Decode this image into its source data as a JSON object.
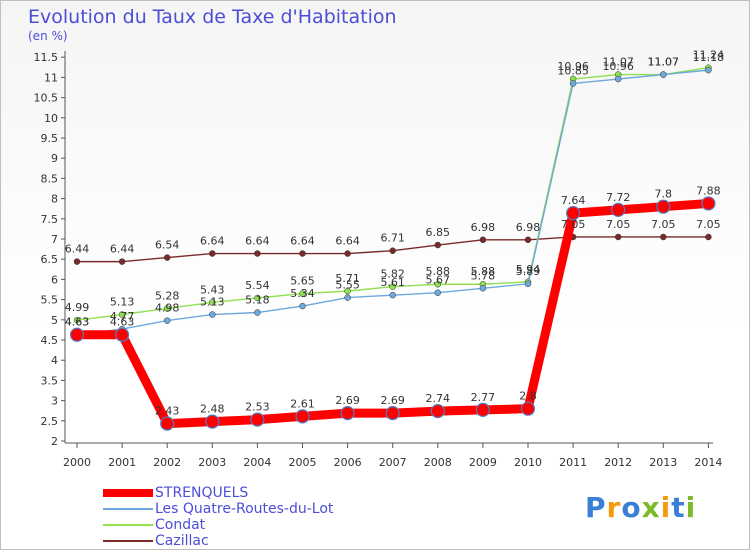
{
  "title": "Evolution du Taux de Taxe d'Habitation",
  "unit_label": "(en %)",
  "logo": {
    "letters": [
      {
        "ch": "P",
        "color": "#3a7fd6"
      },
      {
        "ch": "r",
        "color": "#f39c12"
      },
      {
        "ch": "o",
        "color": "#3a7fd6"
      },
      {
        "ch": "x",
        "color": "#7dbb2c"
      },
      {
        "ch": "i",
        "color": "#f39c12"
      },
      {
        "ch": "t",
        "color": "#3a7fd6"
      },
      {
        "ch": "i",
        "color": "#7dbb2c"
      }
    ]
  },
  "chart_data": {
    "type": "line",
    "x": [
      "2000",
      "2001",
      "2002",
      "2003",
      "2004",
      "2005",
      "2006",
      "2007",
      "2008",
      "2009",
      "2010",
      "2011",
      "2012",
      "2013",
      "2014"
    ],
    "yticks": [
      "2",
      "2.5",
      "3",
      "3.5",
      "4",
      "4.5",
      "5",
      "5.5",
      "6",
      "6.5",
      "7",
      "7.5",
      "8",
      "8.5",
      "9",
      "9.5",
      "10",
      "10.5",
      "11",
      "11.5"
    ],
    "ylim": [
      2,
      11.7
    ],
    "grid": false,
    "legend_position": "bottom-left",
    "series": [
      {
        "name": "STRENQUELS",
        "color": "#ff0000",
        "thick": true,
        "values": [
          4.63,
          4.63,
          2.43,
          2.48,
          2.53,
          2.61,
          2.69,
          2.69,
          2.74,
          2.77,
          2.8,
          7.64,
          7.72,
          7.8,
          7.88
        ],
        "labels": [
          "4.63",
          "4.63",
          "2.43",
          "2.48",
          "2.53",
          "2.61",
          "2.69",
          "2.69",
          "2.74",
          "2.77",
          "2.8",
          "7.64",
          "7.72",
          "7.8",
          "7.88"
        ]
      },
      {
        "name": "Les Quatre-Routes-du-Lot",
        "color": "#6fa8dc",
        "values": [
          4.63,
          4.77,
          4.98,
          5.13,
          5.18,
          5.34,
          5.55,
          5.61,
          5.67,
          5.78,
          5.89,
          10.85,
          10.96,
          11.07,
          11.18
        ],
        "labels": [
          "4.63",
          "4.77",
          "4.98",
          "5.13",
          "5.18",
          "5.34",
          "5.55",
          "5.61",
          "5.67",
          "5.78",
          "5.89",
          "10.85",
          "10.96",
          "11.07",
          "11.18"
        ]
      },
      {
        "name": "Condat",
        "color": "#90e050",
        "values": [
          4.99,
          5.13,
          5.28,
          5.43,
          5.54,
          5.65,
          5.71,
          5.82,
          5.88,
          5.88,
          5.94,
          10.96,
          11.07,
          11.07,
          11.24
        ],
        "labels": [
          "4.99",
          "5.13",
          "5.28",
          "5.43",
          "5.54",
          "5.65",
          "5.71",
          "5.82",
          "5.88",
          "5.88",
          "5.94",
          "10.96",
          "11.07",
          "11.07",
          "11.24"
        ]
      },
      {
        "name": "Cazillac",
        "color": "#7a2a2a",
        "values": [
          6.44,
          6.44,
          6.54,
          6.64,
          6.64,
          6.64,
          6.64,
          6.71,
          6.85,
          6.98,
          6.98,
          7.05,
          7.05,
          7.05,
          7.05
        ],
        "labels": [
          "6.44",
          "6.44",
          "6.54",
          "6.64",
          "6.64",
          "6.64",
          "6.64",
          "6.71",
          "6.85",
          "6.98",
          "6.98",
          "7.05",
          "7.05",
          "7.05",
          "7.05"
        ]
      }
    ]
  }
}
